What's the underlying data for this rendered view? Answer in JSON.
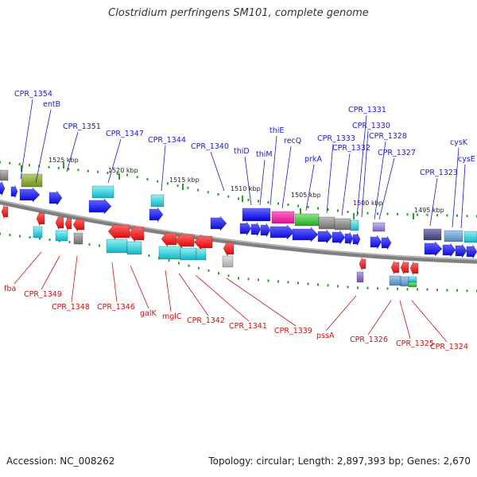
{
  "title": "Clostridium perfringens SM101, complete genome",
  "footer": {
    "accession": "Accession: NC_008262",
    "topology": "Topology: circular; Length: 2,897,393 bp; Genes: 2,670"
  },
  "colors": {
    "forward_label": "#1a1acc",
    "reverse_label": "#cc1111",
    "backbone": "#808080",
    "tick": "#2a9d2a"
  },
  "scale_labels": [
    "1525 kbp",
    "1520 kbp",
    "1515 kbp",
    "1510 kbp",
    "1505 kbp",
    "1500 kbp",
    "1495 kbp"
  ],
  "forward_genes": [
    "CPR_1354",
    "entB",
    "CPR_1351",
    "CPR_1347",
    "CPR_1344",
    "CPR_1340",
    "thiD",
    "thiM",
    "thiE",
    "recQ",
    "prkA",
    "CPR_1333",
    "CPR_1332",
    "CPR_1331",
    "CPR_1330",
    "CPR_1328",
    "CPR_1327",
    "CPR_1323",
    "cysK",
    "cysE"
  ],
  "reverse_genes": [
    "fba",
    "CPR_1349",
    "CPR_1348",
    "CPR_1346",
    "galK",
    "mglC",
    "CPR_1342",
    "CPR_1341",
    "CPR_1339",
    "pssA",
    "CPR_1326",
    "CPR_1325",
    "CPR_1324"
  ]
}
